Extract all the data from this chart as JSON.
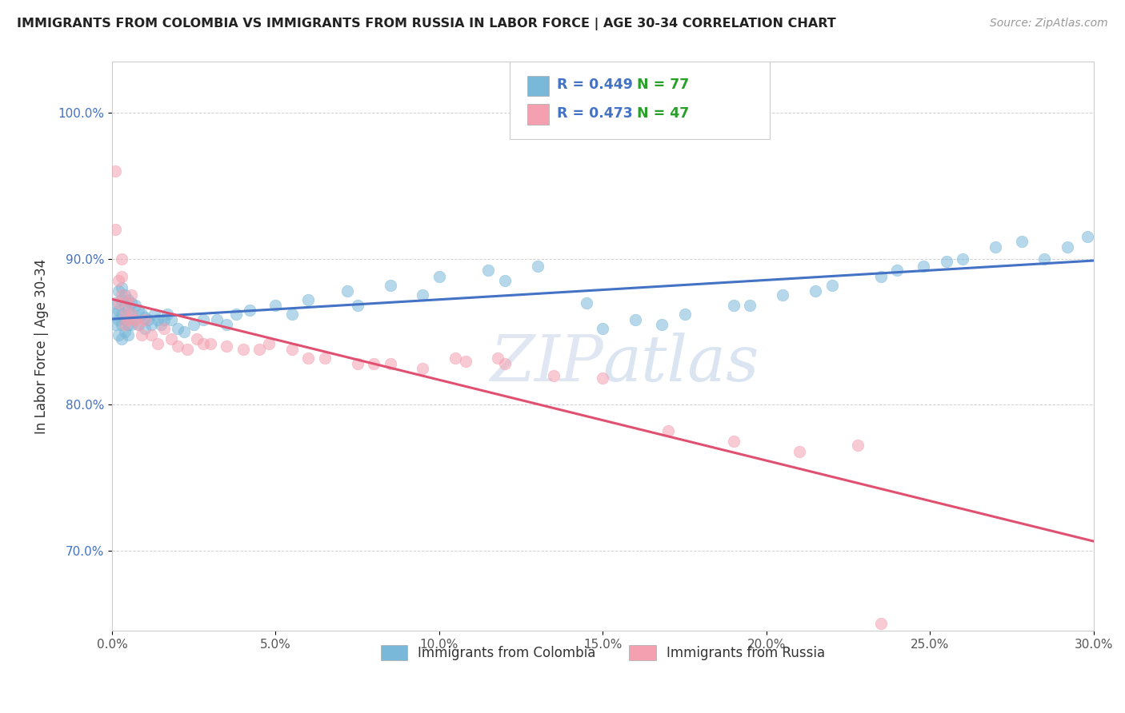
{
  "title": "IMMIGRANTS FROM COLOMBIA VS IMMIGRANTS FROM RUSSIA IN LABOR FORCE | AGE 30-34 CORRELATION CHART",
  "source": "Source: ZipAtlas.com",
  "ylabel": "In Labor Force | Age 30-34",
  "xlim": [
    0.0,
    0.3
  ],
  "ylim": [
    0.645,
    1.035
  ],
  "xticks": [
    0.0,
    0.05,
    0.1,
    0.15,
    0.2,
    0.25,
    0.3
  ],
  "xtick_labels": [
    "0.0%",
    "5.0%",
    "10.0%",
    "15.0%",
    "20.0%",
    "25.0%",
    "30.0%"
  ],
  "yticks": [
    0.7,
    0.8,
    0.9,
    1.0
  ],
  "ytick_labels": [
    "70.0%",
    "80.0%",
    "90.0%",
    "100.0%"
  ],
  "colombia_color": "#7ab8d9",
  "russia_color": "#f4a0b0",
  "colombia_R": 0.449,
  "colombia_N": 77,
  "russia_R": 0.473,
  "russia_N": 47,
  "colombia_line_color": "#4472c4",
  "russia_line_color": "#e05070",
  "legend_R_color": "#4472c4",
  "legend_N_color": "#2aa02a",
  "watermark_zip": "ZIP",
  "watermark_atlas": "atlas",
  "colombia_x": [
    0.001,
    0.001,
    0.001,
    0.002,
    0.002,
    0.002,
    0.002,
    0.003,
    0.003,
    0.003,
    0.003,
    0.003,
    0.004,
    0.004,
    0.004,
    0.004,
    0.005,
    0.005,
    0.005,
    0.005,
    0.006,
    0.006,
    0.006,
    0.007,
    0.007,
    0.008,
    0.008,
    0.009,
    0.01,
    0.01,
    0.011,
    0.012,
    0.013,
    0.014,
    0.015,
    0.016,
    0.017,
    0.018,
    0.02,
    0.022,
    0.025,
    0.028,
    0.032,
    0.038,
    0.042,
    0.05,
    0.06,
    0.072,
    0.085,
    0.1,
    0.115,
    0.13,
    0.145,
    0.16,
    0.175,
    0.19,
    0.205,
    0.22,
    0.235,
    0.248,
    0.26,
    0.27,
    0.278,
    0.285,
    0.292,
    0.298,
    0.255,
    0.24,
    0.215,
    0.195,
    0.168,
    0.15,
    0.12,
    0.095,
    0.075,
    0.055,
    0.035
  ],
  "colombia_y": [
    0.87,
    0.862,
    0.855,
    0.878,
    0.865,
    0.858,
    0.848,
    0.88,
    0.872,
    0.862,
    0.855,
    0.845,
    0.875,
    0.868,
    0.858,
    0.85,
    0.872,
    0.865,
    0.855,
    0.848,
    0.87,
    0.862,
    0.855,
    0.868,
    0.858,
    0.865,
    0.855,
    0.862,
    0.86,
    0.852,
    0.858,
    0.855,
    0.862,
    0.858,
    0.855,
    0.858,
    0.862,
    0.858,
    0.852,
    0.85,
    0.855,
    0.858,
    0.858,
    0.862,
    0.865,
    0.868,
    0.872,
    0.878,
    0.882,
    0.888,
    0.892,
    0.895,
    0.87,
    0.858,
    0.862,
    0.868,
    0.875,
    0.882,
    0.888,
    0.895,
    0.9,
    0.908,
    0.912,
    0.9,
    0.908,
    0.915,
    0.898,
    0.892,
    0.878,
    0.868,
    0.855,
    0.852,
    0.885,
    0.875,
    0.868,
    0.862,
    0.855
  ],
  "russia_x": [
    0.001,
    0.001,
    0.002,
    0.002,
    0.003,
    0.003,
    0.003,
    0.004,
    0.004,
    0.005,
    0.005,
    0.006,
    0.006,
    0.007,
    0.008,
    0.009,
    0.01,
    0.012,
    0.014,
    0.016,
    0.018,
    0.02,
    0.023,
    0.026,
    0.03,
    0.035,
    0.04,
    0.048,
    0.055,
    0.065,
    0.075,
    0.085,
    0.095,
    0.105,
    0.12,
    0.135,
    0.15,
    0.17,
    0.19,
    0.21,
    0.228,
    0.108,
    0.118,
    0.028,
    0.045,
    0.06,
    0.08
  ],
  "russia_y": [
    0.96,
    0.92,
    0.885,
    0.87,
    0.9,
    0.888,
    0.875,
    0.862,
    0.855,
    0.87,
    0.858,
    0.875,
    0.862,
    0.858,
    0.855,
    0.848,
    0.858,
    0.848,
    0.842,
    0.852,
    0.845,
    0.84,
    0.838,
    0.845,
    0.842,
    0.84,
    0.838,
    0.842,
    0.838,
    0.832,
    0.828,
    0.828,
    0.825,
    0.832,
    0.828,
    0.82,
    0.818,
    0.782,
    0.775,
    0.768,
    0.772,
    0.83,
    0.832,
    0.842,
    0.838,
    0.832,
    0.828
  ],
  "russia_extra_x": [
    0.235
  ],
  "russia_extra_y": [
    0.65
  ]
}
